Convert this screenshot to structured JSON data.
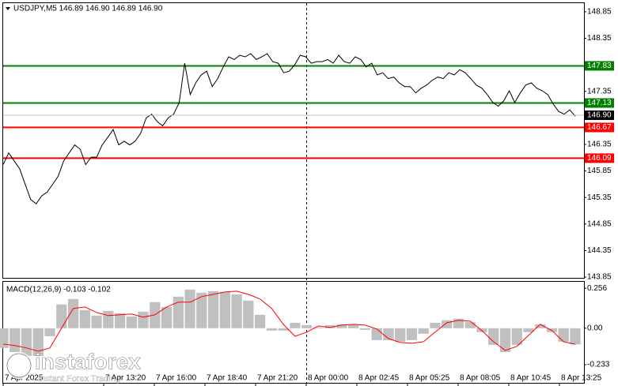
{
  "chart_data": [
    {
      "type": "line",
      "title": "USDJPY,M5  146.89 146.90 146.89 146.90",
      "color": "#000000",
      "values": [
        145.97,
        146.19,
        146.04,
        145.89,
        145.6,
        145.31,
        145.23,
        145.38,
        145.45,
        145.6,
        145.75,
        146.04,
        146.19,
        146.34,
        146.26,
        145.97,
        146.11,
        146.11,
        146.34,
        146.48,
        146.63,
        146.34,
        146.41,
        146.34,
        146.41,
        146.56,
        146.85,
        146.92,
        146.78,
        146.7,
        146.85,
        146.92,
        147.14,
        147.88,
        147.29,
        147.51,
        147.66,
        147.73,
        147.44,
        147.59,
        147.81,
        148.0,
        147.95,
        148.03,
        148.0,
        148.06,
        147.95,
        148.0,
        148.06,
        147.91,
        147.88,
        147.7,
        147.73,
        147.85,
        148.03,
        148.0,
        147.88,
        147.91,
        147.91,
        147.95,
        147.88,
        148.03,
        147.91,
        147.88,
        148.0,
        147.95,
        147.81,
        147.88,
        147.66,
        147.7,
        147.59,
        147.62,
        147.51,
        147.44,
        147.44,
        147.32,
        147.41,
        147.47,
        147.56,
        147.62,
        147.59,
        147.7,
        147.66,
        147.76,
        147.7,
        147.59,
        147.47,
        147.41,
        147.29,
        147.14,
        147.07,
        147.17,
        147.36,
        147.14,
        147.32,
        147.47,
        147.51,
        147.41,
        147.36,
        147.29,
        147.11,
        146.97,
        146.92,
        147.0,
        146.88
      ],
      "ylim": [
        143.835,
        149.012
      ],
      "yticks": [
        148.85,
        148.35,
        147.85,
        147.35,
        146.85,
        146.35,
        145.85,
        145.35,
        144.85,
        144.35,
        143.85
      ],
      "levels": [
        {
          "value": 147.83,
          "color": "#008000"
        },
        {
          "value": 147.13,
          "color": "#008000"
        },
        {
          "value": 146.67,
          "color": "#ff0000"
        },
        {
          "value": 146.09,
          "color": "#ff0000"
        }
      ],
      "current_price": {
        "value": 146.9,
        "label": "146.90"
      },
      "x_labels": [
        "7 Apr 2025",
        "7 Apr 13:20",
        "7 Apr 16:00",
        "7 Apr 18:40",
        "7 Apr 21:20",
        "8 Apr 00:00",
        "8 Apr 02:45",
        "8 Apr 05:25",
        "8 Apr 08:05",
        "8 Apr 10:45",
        "8 Apr 13:25"
      ]
    },
    {
      "type": "macd",
      "title": "MACD(12,26,9) -0.103 -0.102",
      "ylim": [
        -0.349,
        0.297
      ],
      "yticks": [
        0.256,
        {
          "value": 0,
          "label": "0.00"
        },
        -0.233
      ],
      "series": [
        {
          "style": "bar",
          "color": "#c0c0c0",
          "values": [
            -0.126,
            -0.152,
            -0.177,
            -0.177,
            -0.051,
            0.152,
            0.187,
            0.116,
            0.081,
            0.111,
            0.096,
            0.076,
            0.106,
            0.167,
            0.136,
            0.202,
            0.247,
            0.227,
            0.237,
            0.232,
            0.217,
            0.177,
            0.086,
            -0.015,
            -0.015,
            0.035,
            0.02,
            0.005,
            0.02,
            0.025,
            0.025,
            -0.01,
            -0.076,
            -0.076,
            -0.086,
            -0.076,
            -0.035,
            0.035,
            0.051,
            0.061,
            0.04,
            -0.025,
            -0.106,
            -0.152,
            -0.106,
            -0.025,
            0.025,
            -0.025,
            -0.086,
            -0.103
          ]
        },
        {
          "style": "line",
          "color": "#ff0000",
          "values": [
            -0.101,
            -0.111,
            -0.126,
            -0.146,
            -0.126,
            0,
            0.126,
            0.136,
            0.101,
            0.081,
            0.086,
            0.091,
            0.071,
            0.086,
            0.136,
            0.167,
            0.167,
            0.202,
            0.217,
            0.232,
            0.237,
            0.217,
            0.187,
            0.126,
            0.025,
            -0.051,
            -0.025,
            0.015,
            0.005,
            0.02,
            0.025,
            0.02,
            -0.005,
            -0.066,
            -0.091,
            -0.096,
            -0.086,
            -0.025,
            0.035,
            0.051,
            0.045,
            -0.015,
            -0.086,
            -0.141,
            -0.116,
            -0.045,
            0.025,
            -0.015,
            -0.086,
            -0.102
          ]
        }
      ]
    }
  ],
  "watermark": {
    "brand": "instaforex",
    "tagline": "Instant Forex Trading"
  }
}
